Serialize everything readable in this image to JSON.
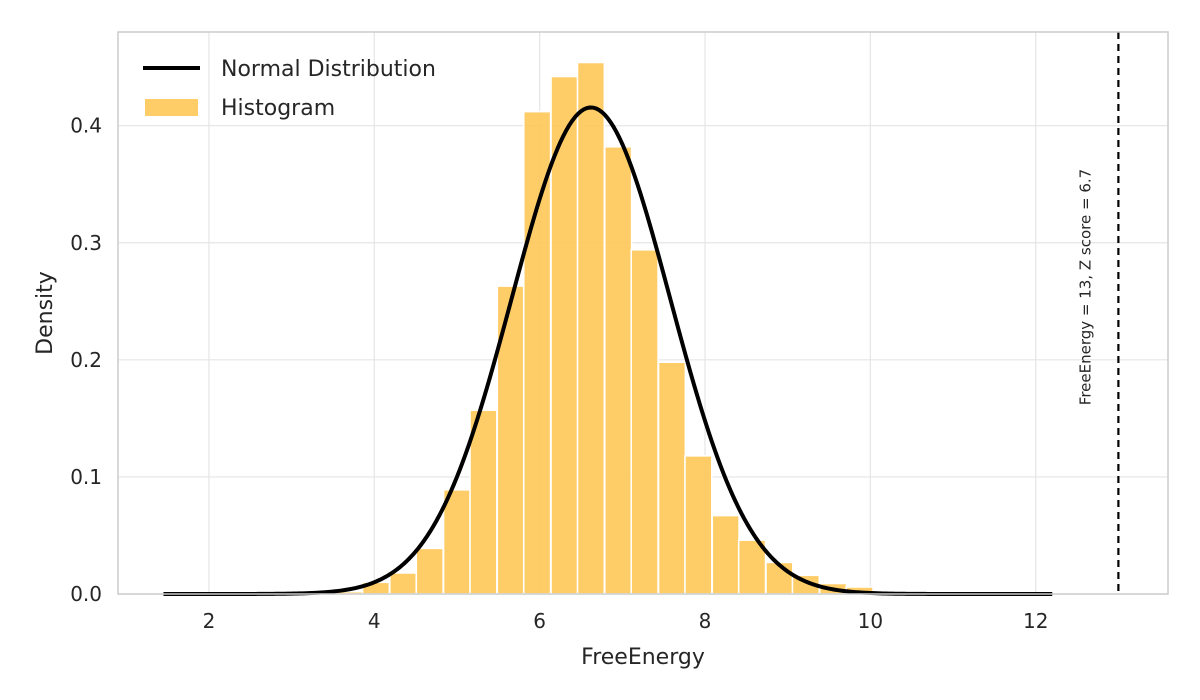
{
  "chart_data": {
    "type": "bar",
    "xlabel": "FreeEnergy",
    "ylabel": "Density",
    "xlim": [
      0.9,
      13.6
    ],
    "ylim": [
      0,
      0.48
    ],
    "x_ticks": [
      "2",
      "4",
      "6",
      "8",
      "10",
      "12"
    ],
    "y_ticks": [
      "0.0",
      "0.1",
      "0.2",
      "0.3",
      "0.4"
    ],
    "grid": true,
    "legend_position": "top-left",
    "series": [
      {
        "name": "Histogram",
        "kind": "histogram",
        "color": "#FFC857",
        "bin_width": 0.325,
        "bins": [
          {
            "x": 3.7,
            "height": 0.002
          },
          {
            "x": 4.02,
            "height": 0.01
          },
          {
            "x": 4.35,
            "height": 0.018
          },
          {
            "x": 4.67,
            "height": 0.039
          },
          {
            "x": 5.0,
            "height": 0.089
          },
          {
            "x": 5.32,
            "height": 0.157
          },
          {
            "x": 5.65,
            "height": 0.263
          },
          {
            "x": 5.97,
            "height": 0.412
          },
          {
            "x": 6.3,
            "height": 0.442
          },
          {
            "x": 6.62,
            "height": 0.454
          },
          {
            "x": 6.95,
            "height": 0.382
          },
          {
            "x": 7.27,
            "height": 0.294
          },
          {
            "x": 7.6,
            "height": 0.198
          },
          {
            "x": 7.92,
            "height": 0.118
          },
          {
            "x": 8.25,
            "height": 0.067
          },
          {
            "x": 8.57,
            "height": 0.046
          },
          {
            "x": 8.9,
            "height": 0.027
          },
          {
            "x": 9.22,
            "height": 0.016
          },
          {
            "x": 9.55,
            "height": 0.009
          },
          {
            "x": 9.87,
            "height": 0.006
          },
          {
            "x": 10.2,
            "height": 0.002
          }
        ]
      },
      {
        "name": "Normal Distribution",
        "kind": "line",
        "color": "#000000",
        "mean": 6.62,
        "std": 0.96,
        "x_range": [
          1.45,
          12.2
        ]
      }
    ],
    "reference_line": {
      "x": 13,
      "style": "dashed",
      "color": "#000000",
      "label": "FreeEnergy = 13, Z score = 6.7"
    }
  }
}
